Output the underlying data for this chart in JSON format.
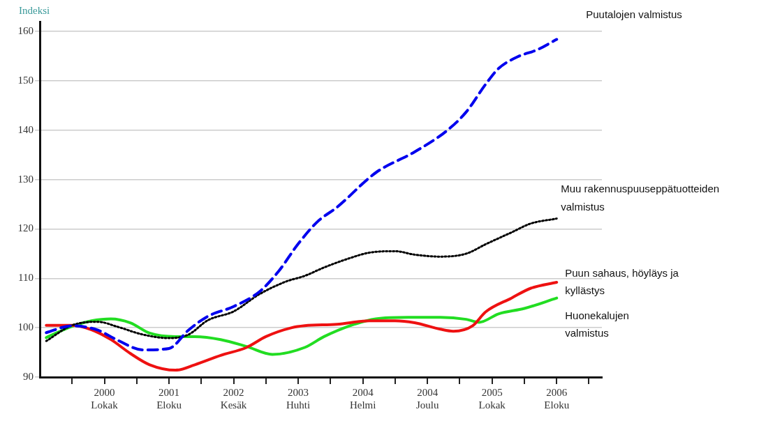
{
  "chart_data": {
    "type": "line",
    "ylabel": "Indeksi",
    "xlim": [
      "1999-12",
      "2007-03"
    ],
    "xticks": [
      {
        "value": "2000-05",
        "label": null
      },
      {
        "value": "2000-10",
        "label": "2000\nLokak"
      },
      {
        "value": "2001-03",
        "label": null
      },
      {
        "value": "2001-08",
        "label": "2001\nEloku"
      },
      {
        "value": "2002-01",
        "label": null
      },
      {
        "value": "2002-06",
        "label": "2002\nKesäk"
      },
      {
        "value": "2002-11",
        "label": null
      },
      {
        "value": "2003-04",
        "label": "2003\nHuhti"
      },
      {
        "value": "2003-09",
        "label": null
      },
      {
        "value": "2004-02",
        "label": "2004\nHelmi"
      },
      {
        "value": "2004-07",
        "label": null
      },
      {
        "value": "2004-12",
        "label": "2004\nJoulu"
      },
      {
        "value": "2005-05",
        "label": null
      },
      {
        "value": "2005-10",
        "label": "2005\nLokak"
      },
      {
        "value": "2006-03",
        "label": null
      },
      {
        "value": "2006-08",
        "label": "2006\nEloku"
      },
      {
        "value": "2007-01",
        "label": null
      }
    ],
    "ylim": [
      90,
      162
    ],
    "yticks": [
      90,
      100,
      110,
      120,
      130,
      140,
      150,
      160
    ],
    "grid": "y",
    "legend": false,
    "marker": "none",
    "series": [
      {
        "name": "Puutalojen valmistus",
        "color": "#0000ee",
        "line_style": "dashed",
        "x": [
          "2000-01",
          "2000-05",
          "2000-09",
          "2000-12",
          "2001-04",
          "2001-08",
          "2001-11",
          "2002-02",
          "2002-06",
          "2002-10",
          "2003-01",
          "2003-04",
          "2003-07",
          "2003-10",
          "2004-04",
          "2004-10",
          "2005-03",
          "2005-06",
          "2005-09",
          "2005-11",
          "2006-02",
          "2006-05",
          "2006-08"
        ],
        "values": [
          99,
          100.4,
          99.5,
          97.5,
          95.5,
          95.8,
          99.5,
          102.3,
          104.3,
          107.3,
          111.5,
          117,
          121.5,
          124.4,
          131.4,
          135.6,
          139.9,
          143.7,
          149.3,
          152.5,
          154.9,
          156.3,
          158.4
        ]
      },
      {
        "name": "Muu rakennuspuuseppätuotteiden valmistus",
        "color": "#000000",
        "line_style": "dotted",
        "x": [
          "2000-01",
          "2000-05",
          "2000-09",
          "2000-12",
          "2001-04",
          "2001-08",
          "2001-11",
          "2002-02",
          "2002-06",
          "2002-10",
          "2003-02",
          "2003-05",
          "2003-08",
          "2003-12",
          "2004-03",
          "2004-07",
          "2004-10",
          "2005-02",
          "2005-06",
          "2005-09",
          "2006-01",
          "2006-04",
          "2006-08"
        ],
        "values": [
          97.3,
          100.5,
          101.2,
          100.2,
          98.6,
          97.9,
          98.6,
          101.5,
          103.3,
          106.8,
          109.3,
          110.5,
          112.2,
          114.1,
          115.2,
          115.5,
          114.8,
          114.4,
          115,
          116.9,
          119.3,
          121.1,
          122.1
        ]
      },
      {
        "name": "Puun sahaus, höyläys ja kyllästys",
        "color": "#ee1111",
        "line_style": "solid",
        "x": [
          "2000-01",
          "2000-05",
          "2000-08",
          "2000-11",
          "2001-02",
          "2001-05",
          "2001-09",
          "2001-12",
          "2002-04",
          "2002-08",
          "2002-11",
          "2003-03",
          "2003-05",
          "2003-10",
          "2004-03",
          "2004-07",
          "2004-10",
          "2005-02",
          "2005-04",
          "2005-07",
          "2005-09",
          "2006-01",
          "2006-04",
          "2006-08"
        ],
        "values": [
          100.5,
          100.5,
          99.6,
          97.6,
          94.8,
          92.5,
          91.4,
          92.5,
          94.4,
          96,
          98.2,
          100,
          100.4,
          100.7,
          101.4,
          101.4,
          101,
          99.7,
          99.3,
          100.4,
          103.2,
          106,
          108,
          109.2
        ]
      },
      {
        "name": "Huonekalujen valmistus",
        "color": "#22dd22",
        "line_style": "solid",
        "x": [
          "2000-01",
          "2000-05",
          "2000-08",
          "2000-11",
          "2001-02",
          "2001-05",
          "2001-09",
          "2001-12",
          "2002-04",
          "2002-08",
          "2002-12",
          "2003-05",
          "2003-08",
          "2003-12",
          "2004-04",
          "2004-09",
          "2005-02",
          "2005-06",
          "2005-08",
          "2005-11",
          "2006-03",
          "2006-08"
        ],
        "values": [
          98,
          100.3,
          101.4,
          101.8,
          101,
          98.9,
          98.2,
          98.2,
          97.6,
          96.2,
          94.6,
          96,
          98.2,
          100.4,
          101.8,
          102.1,
          102.1,
          101.7,
          101.1,
          102.8,
          103.9,
          106
        ]
      }
    ]
  }
}
